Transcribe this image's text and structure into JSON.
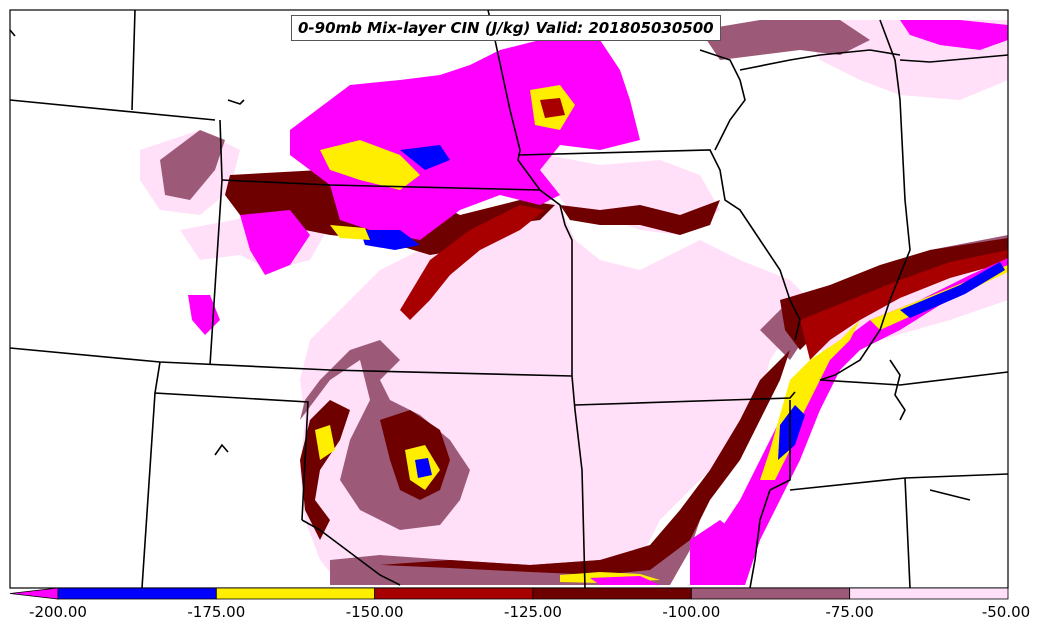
{
  "title": "0-90mb Mix-layer CIN (J/kg) Valid: 201805030500",
  "colorbar": {
    "ticks": [
      "-200.00",
      "-175.00",
      "-150.00",
      "-125.00",
      "-100.00",
      "-75.00",
      "-50.00"
    ],
    "bins": [
      {
        "from": -200,
        "to": -175,
        "color": "#0000ff"
      },
      {
        "from": -175,
        "to": -150,
        "color": "#ffee00"
      },
      {
        "from": -150,
        "to": -125,
        "color": "#a80000"
      },
      {
        "from": -125,
        "to": -100,
        "color": "#6e0000"
      },
      {
        "from": -100,
        "to": -75,
        "color": "#9c5a78"
      },
      {
        "from": -75,
        "to": -50,
        "color": "#ffe0f8"
      }
    ],
    "under_color": "#ff00ff"
  },
  "colors": {
    "background": "#ffffff",
    "boundary": "#000000",
    "magenta": "#ff00ff",
    "blue": "#0000ff",
    "yellow": "#ffee00",
    "red": "#a80000",
    "darkred": "#6e0000",
    "mauve": "#9c5a78",
    "pink": "#ffe0f8"
  }
}
